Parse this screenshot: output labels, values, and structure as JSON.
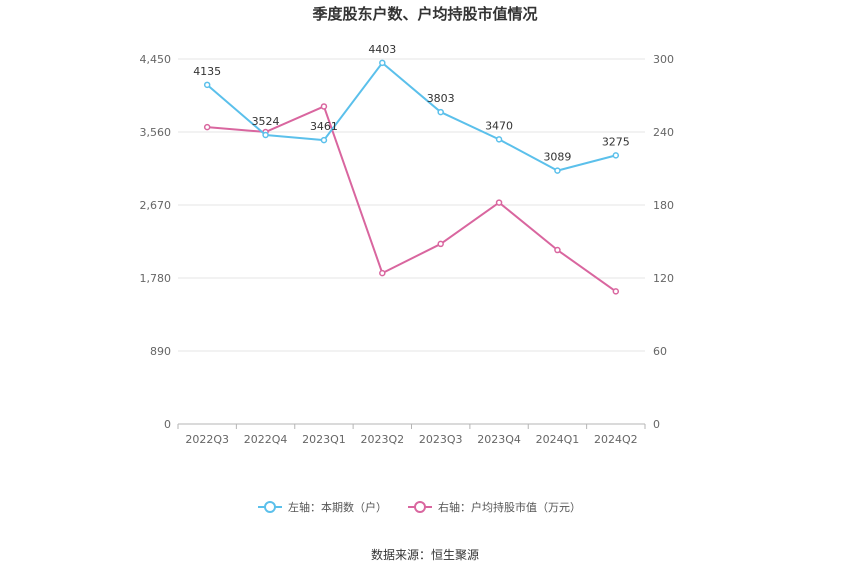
{
  "chart_data": {
    "type": "line",
    "title": "季度股东户数、户均持股市值情况",
    "categories": [
      "2022Q3",
      "2022Q4",
      "2023Q1",
      "2023Q2",
      "2023Q3",
      "2023Q4",
      "2024Q1",
      "2024Q2"
    ],
    "left_axis": {
      "range": [
        0,
        4450
      ],
      "ticks": [
        "0",
        "890",
        "1,780",
        "2,670",
        "3,560",
        "4,450"
      ]
    },
    "right_axis": {
      "range": [
        0,
        300
      ],
      "ticks": [
        "0",
        "60",
        "120",
        "180",
        "240",
        "300"
      ]
    },
    "grid": true,
    "legend_position": "bottom",
    "series": [
      {
        "name": "左轴：本期数（户）",
        "axis": "left",
        "color": "#5bc0eb",
        "values": [
          4135,
          3524,
          3461,
          4403,
          3803,
          3470,
          3089,
          3275
        ],
        "labels": [
          "4135",
          "3524",
          "3461",
          "4403",
          "3803",
          "3470",
          "3089",
          "3275"
        ]
      },
      {
        "name": "右轴：户均持股市值（万元）",
        "axis": "right",
        "color": "#d9669f",
        "values": [
          244,
          240,
          261,
          124,
          148,
          182,
          143,
          109
        ]
      }
    ],
    "source": "数据来源：恒生聚源"
  }
}
